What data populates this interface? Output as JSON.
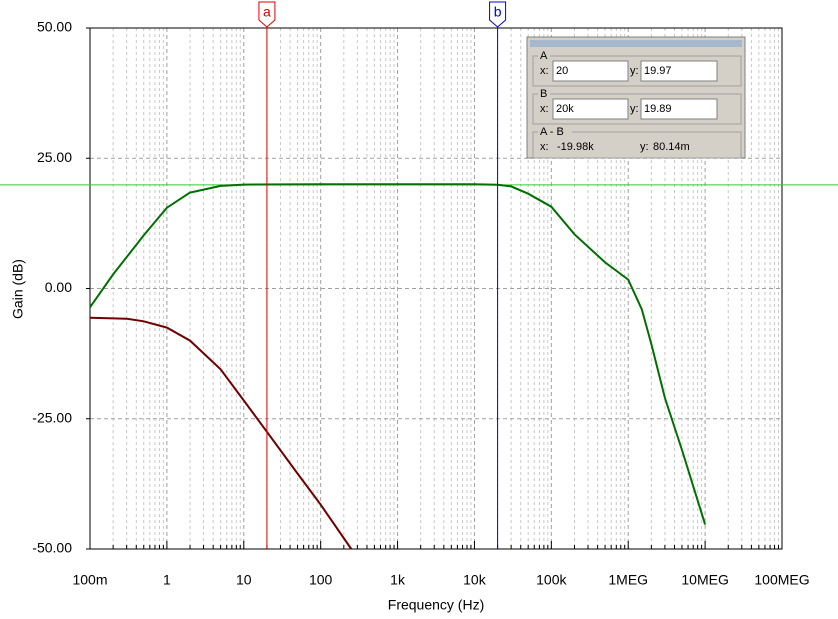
{
  "chart_data": {
    "type": "line",
    "x_scale": "log",
    "y_label": "Gain (dB)",
    "x_label": "Frequency (Hz)",
    "xlim": [
      0.1,
      100000000
    ],
    "ylim": [
      -50,
      50
    ],
    "xticks": [
      {
        "value": 0.1,
        "label": "100m"
      },
      1,
      10,
      100,
      {
        "value": 1000,
        "label": "1k"
      },
      {
        "value": 10000,
        "label": "10k"
      },
      {
        "value": 100000,
        "label": "100k"
      },
      {
        "value": 1000000,
        "label": "1MEG"
      },
      {
        "value": 10000000,
        "label": "10MEG"
      },
      {
        "value": 100000000,
        "label": "100MEG"
      }
    ],
    "yticks": [
      {
        "value": 50,
        "label": "50.00"
      },
      {
        "value": 25,
        "label": "25.00"
      },
      {
        "value": 0,
        "label": "0.00"
      },
      {
        "value": -25,
        "label": "-25.00"
      },
      {
        "value": -50,
        "label": "-50.00"
      }
    ],
    "grid": true,
    "minor_grid": true,
    "series": [
      {
        "color": "#007000",
        "x": [
          0.1,
          0.2,
          0.5,
          1,
          2,
          5,
          10,
          100,
          1000,
          10000,
          20000,
          30000,
          50000,
          100000,
          200000,
          500000,
          1000000,
          1500000,
          2000000,
          3000000,
          5000000,
          10000000
        ],
        "values": [
          -3.6,
          2.7,
          10.2,
          15.5,
          18.4,
          19.7,
          19.95,
          20,
          20,
          20,
          19.9,
          19.6,
          18.2,
          15.7,
          10.4,
          5,
          1.7,
          -4,
          -10.7,
          -21,
          -31,
          -45.3
        ]
      },
      {
        "color": "#700000",
        "x": [
          0.1,
          0.3,
          0.5,
          1,
          2,
          5,
          10,
          20,
          50,
          100,
          250
        ],
        "values": [
          -5.6,
          -5.8,
          -6.3,
          -7.5,
          -10,
          -15.5,
          -21.5,
          -27.5,
          -35.5,
          -41.5,
          -50
        ]
      }
    ],
    "cursors": [
      {
        "label": "a",
        "x": 20,
        "color": "#e00000"
      },
      {
        "label": "b",
        "x": 20000,
        "color": "#0000e0"
      }
    ],
    "cursor_level": 19.89,
    "readout": [
      {
        "title": "A",
        "x_label": "x:",
        "x": "20",
        "y_label": "y:",
        "y": "19.97"
      },
      {
        "title": "B",
        "x_label": "x:",
        "x": "20k",
        "y_label": "y:",
        "y": "19.89"
      },
      {
        "title": "A - B",
        "x_label": "x:",
        "x": "-19.98k",
        "y_label": "y:",
        "y": "80.14m"
      }
    ]
  }
}
